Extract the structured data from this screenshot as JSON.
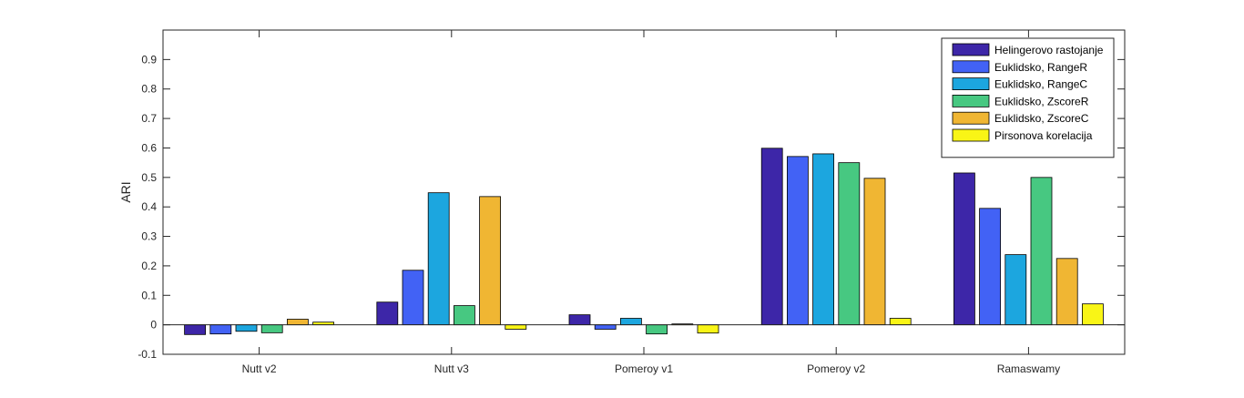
{
  "chart_data": {
    "type": "bar",
    "title": "",
    "xlabel": "",
    "ylabel": "ARI",
    "ylim": [
      -0.1,
      1.0
    ],
    "yticks": [
      -0.1,
      0,
      0.1,
      0.2,
      0.3,
      0.4,
      0.5,
      0.6,
      0.7,
      0.8,
      0.9
    ],
    "grid": false,
    "legend_position": "top-right",
    "categories": [
      "Nutt v2",
      "Nutt v3",
      "Pomeroy v1",
      "Pomeroy v2",
      "Ramaswamy"
    ],
    "series": [
      {
        "name": "Helingerovo rastojanje",
        "color": "#3D26A8",
        "values": [
          -0.033,
          0.077,
          0.034,
          0.599,
          0.515
        ]
      },
      {
        "name": "Euklidsko, RangeR",
        "color": "#4262F5",
        "values": [
          -0.031,
          0.185,
          -0.015,
          0.571,
          0.395
        ]
      },
      {
        "name": "Euklidsko, RangeC",
        "color": "#1CA6DF",
        "values": [
          -0.022,
          0.448,
          0.022,
          0.58,
          0.238
        ]
      },
      {
        "name": "Euklidsko, ZscoreR",
        "color": "#47C881",
        "values": [
          -0.027,
          0.065,
          -0.031,
          0.55,
          0.5
        ]
      },
      {
        "name": "Euklidsko, ZscoreC",
        "color": "#F0B633",
        "values": [
          0.019,
          0.435,
          0.003,
          0.497,
          0.225
        ]
      },
      {
        "name": "Pirsonova korelacija",
        "color": "#F9F516",
        "values": [
          0.009,
          -0.015,
          -0.028,
          0.022,
          0.071
        ]
      }
    ]
  }
}
